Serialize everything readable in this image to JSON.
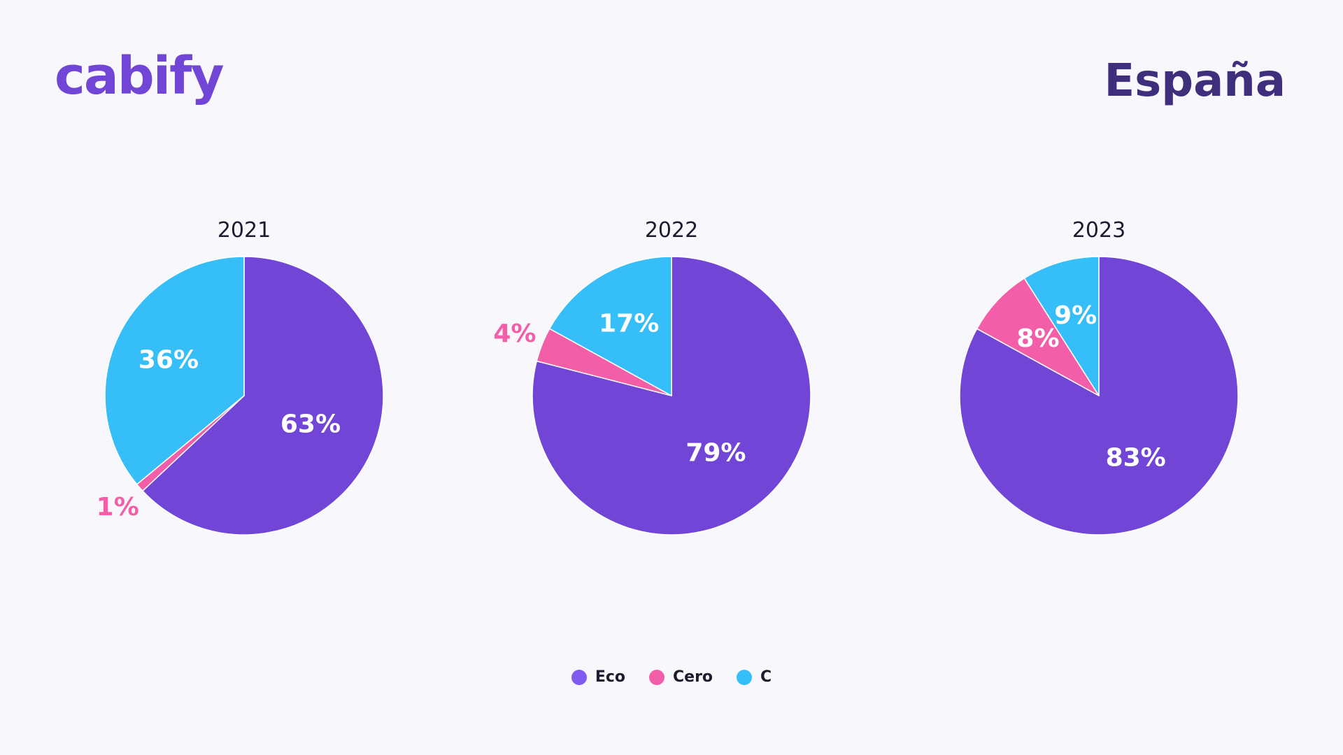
{
  "header": {
    "logo_text": "cabify",
    "region_title": "España"
  },
  "colors": {
    "logo": "#7145d6",
    "title": "#3f2e7c",
    "eco": "#7145d6",
    "cero": "#f25ea7",
    "c": "#36bef8",
    "eco_legend": "#7f5bf0",
    "year_label": "#1f1b2e",
    "background": "#f8f7fc"
  },
  "legend": {
    "items": [
      {
        "label": "Eco",
        "color": "#7f5bf0"
      },
      {
        "label": "Cero",
        "color": "#f25ea7"
      },
      {
        "label": "C",
        "color": "#36bef8"
      }
    ]
  },
  "chart_data": [
    {
      "type": "pie",
      "title": "2021",
      "categories": [
        "Eco",
        "Cero",
        "C"
      ],
      "values": [
        63,
        1,
        36
      ],
      "labels": [
        "63%",
        "1%",
        "36%"
      ],
      "legend_position": "bottom"
    },
    {
      "type": "pie",
      "title": "2022",
      "categories": [
        "Eco",
        "Cero",
        "C"
      ],
      "values": [
        79,
        4,
        17
      ],
      "labels": [
        "79%",
        "4%",
        "17%"
      ],
      "legend_position": "bottom"
    },
    {
      "type": "pie",
      "title": "2023",
      "categories": [
        "Eco",
        "Cero",
        "C"
      ],
      "values": [
        83,
        8,
        9
      ],
      "labels": [
        "83%",
        "8%",
        "9%"
      ],
      "legend_position": "bottom"
    }
  ]
}
